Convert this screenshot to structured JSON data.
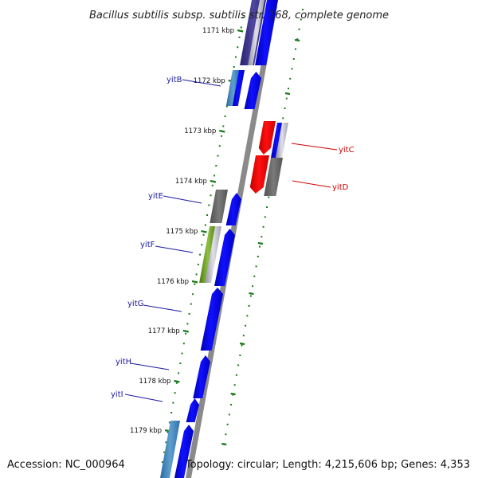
{
  "title": "Bacillus subtilis subsp. subtilis str. 168, complete genome",
  "footer": {
    "accession": "Accession: NC_000964",
    "topology": "Topology: circular; Length: 4,215,606 bp; Genes: 4,353"
  },
  "colors": {
    "forward_cds": "#0000ff",
    "reverse_cds": "#ff0000",
    "backbone": "#888888",
    "tick": "#1a7a1a",
    "label_forward": "#1a1aa0",
    "label_reverse": "#cc0000"
  },
  "scale_labels": [
    "1171 kbp",
    "1172 kbp",
    "1173 kbp",
    "1174 kbp",
    "1175 kbp",
    "1176 kbp",
    "1177 kbp",
    "1178 kbp",
    "1179 kbp"
  ],
  "genes": [
    {
      "name": "yitB",
      "strand": "forward"
    },
    {
      "name": "yitC",
      "strand": "reverse"
    },
    {
      "name": "yitD",
      "strand": "reverse"
    },
    {
      "name": "yitE",
      "strand": "forward"
    },
    {
      "name": "yitF",
      "strand": "forward"
    },
    {
      "name": "yitG",
      "strand": "forward"
    },
    {
      "name": "yitH",
      "strand": "forward"
    },
    {
      "name": "yitI",
      "strand": "forward"
    }
  ]
}
